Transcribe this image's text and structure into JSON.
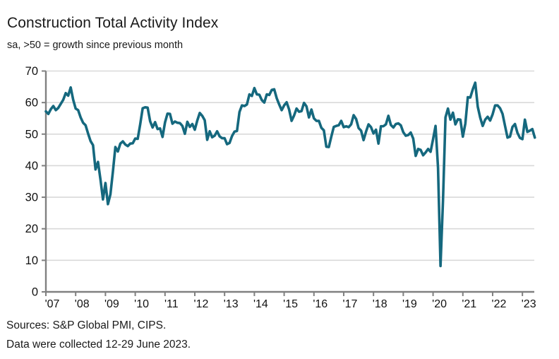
{
  "header": {
    "title": "Construction Total Activity Index",
    "subtitle": "sa, >50 = growth since previous month"
  },
  "footer": {
    "sources": "Sources: S&P Global PMI, CIPS.",
    "collection_note": "Data were collected 12-29 June 2023."
  },
  "chart_data": {
    "type": "line",
    "title": "Construction Total Activity Index",
    "subtitle": "sa, >50 = growth since previous month",
    "x_unit": "month",
    "x_start": "2007-01",
    "x_end": "2023-06",
    "ylim": [
      0,
      70
    ],
    "ytick_step": 10,
    "ytick_labels": [
      "0",
      "10",
      "20",
      "30",
      "40",
      "50",
      "60",
      "70"
    ],
    "year_tick_labels": [
      "'07",
      "'08",
      "'09",
      "'10",
      "'11",
      "'12",
      "'13",
      "'14",
      "'15",
      "'16",
      "'17",
      "'18",
      "'19",
      "'20",
      "'21",
      "'22",
      "'23"
    ],
    "grid": "horizontal",
    "legend": "none",
    "line_color": "#15687e",
    "grid_color": "#d9d9d9",
    "axis_color": "#808080",
    "label_color": "#111111",
    "series": [
      {
        "name": "Construction Total Activity Index",
        "values": [
          57.2,
          56.4,
          57.9,
          58.9,
          57.6,
          58.3,
          59.6,
          60.9,
          63.0,
          62.2,
          64.8,
          60.9,
          58.1,
          57.6,
          55.3,
          53.6,
          52.8,
          50.2,
          47.8,
          46.5,
          38.8,
          41.2,
          35.6,
          29.3,
          34.5,
          27.8,
          30.9,
          38.1,
          45.9,
          44.5,
          47.0,
          47.7,
          46.7,
          46.2,
          47.0,
          47.1,
          48.6,
          48.5,
          53.1,
          58.2,
          58.5,
          58.4,
          54.1,
          52.1,
          53.8,
          51.6,
          51.8,
          49.1,
          53.7,
          56.5,
          56.4,
          53.3,
          54.0,
          53.6,
          53.5,
          52.6,
          50.1,
          53.9,
          52.3,
          53.2,
          51.4,
          54.3,
          56.7,
          55.8,
          54.4,
          48.2,
          50.9,
          49.0,
          49.5,
          50.9,
          49.3,
          48.7,
          48.7,
          46.8,
          47.2,
          49.4,
          50.8,
          51.0,
          57.0,
          59.1,
          58.9,
          59.4,
          62.6,
          62.1,
          64.6,
          62.6,
          62.5,
          60.8,
          60.0,
          62.6,
          62.4,
          64.0,
          64.2,
          61.4,
          59.4,
          57.6,
          59.1,
          60.1,
          57.8,
          54.2,
          55.9,
          58.1,
          57.1,
          57.3,
          59.9,
          58.8,
          55.3,
          57.8,
          55.0,
          54.2,
          54.2,
          52.0,
          51.2,
          46.0,
          45.9,
          49.2,
          52.3,
          52.6,
          52.8,
          54.2,
          52.2,
          52.5,
          52.2,
          53.1,
          56.0,
          54.8,
          51.9,
          51.1,
          48.1,
          50.8,
          53.1,
          52.2,
          50.2,
          51.4,
          47.0,
          52.5,
          52.5,
          53.1,
          55.8,
          52.9,
          52.1,
          53.2,
          53.4,
          52.8,
          50.6,
          49.5,
          49.7,
          50.5,
          48.6,
          43.1,
          45.3,
          45.0,
          43.3,
          44.2,
          45.3,
          44.4,
          48.4,
          52.6,
          39.3,
          8.2,
          28.9,
          55.3,
          58.1,
          54.6,
          56.8,
          53.1,
          54.7,
          54.6,
          49.2,
          53.3,
          61.7,
          61.6,
          64.2,
          66.3,
          58.7,
          55.2,
          52.6,
          54.6,
          55.5,
          54.3,
          56.3,
          59.1,
          59.1,
          58.2,
          56.4,
          52.6,
          48.9,
          49.2,
          52.3,
          53.2,
          50.4,
          48.8,
          48.4,
          54.6,
          50.7,
          51.1,
          51.6,
          48.9
        ]
      }
    ]
  }
}
